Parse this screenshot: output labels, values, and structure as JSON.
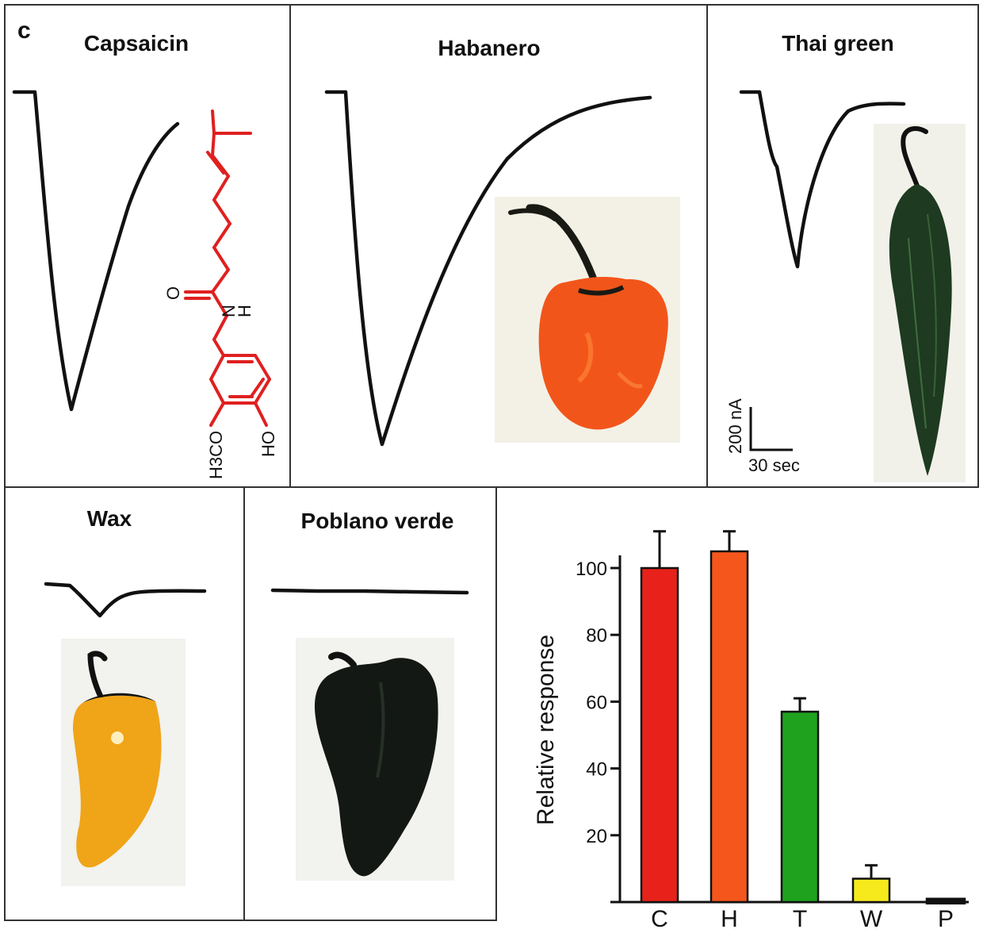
{
  "panel_letter": "c",
  "panels": {
    "capsaicin": {
      "title": "Capsaicin"
    },
    "habanero": {
      "title": "Habanero"
    },
    "thai_green": {
      "title": "Thai green"
    },
    "wax": {
      "title": "Wax"
    },
    "poblano_verde": {
      "title": "Poblano verde"
    }
  },
  "molecule": {
    "labels": {
      "oxygen": "O",
      "nitrogen": "N",
      "hydrogen": "H",
      "methoxy": "H3CO",
      "hydroxyl": "HO"
    },
    "color": "#e02020"
  },
  "scale_bar": {
    "current_label": "200 nA",
    "time_label": "30 sec"
  },
  "chart_data": {
    "type": "bar",
    "categories": [
      "C",
      "H",
      "T",
      "W",
      "P"
    ],
    "values": [
      100,
      105,
      57,
      7,
      1
    ],
    "errors": [
      11,
      6,
      4,
      4,
      0
    ],
    "colors": [
      "#e8221a",
      "#f5561c",
      "#1fa31f",
      "#f6ea1d",
      "#111111"
    ],
    "ylabel": "Relative response",
    "xlabel": "",
    "ylim": [
      0,
      110
    ],
    "yticks": [
      20,
      40,
      60,
      80,
      100
    ]
  },
  "colors": {
    "habanero": "#f2551a",
    "thai_green": "#1e3a20",
    "wax": "#f0a418",
    "poblano": "#141814",
    "trace": "#111111"
  }
}
